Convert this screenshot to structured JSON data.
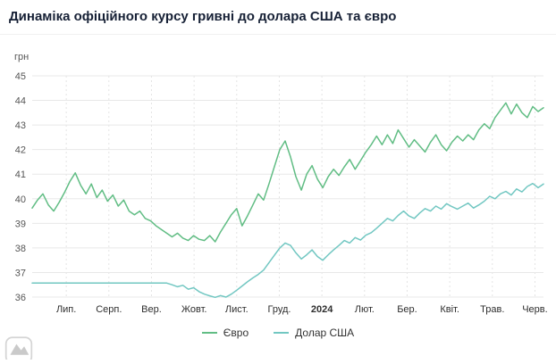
{
  "chart_data": {
    "type": "line",
    "title": "Динаміка офіційного курсу гривні до долара США та євро",
    "xlabel": "",
    "ylabel": "грн",
    "ylim": [
      36,
      45
    ],
    "yticks": [
      36,
      37,
      38,
      39,
      40,
      41,
      42,
      43,
      44,
      45
    ],
    "grid": true,
    "legend_position": "bottom",
    "categories": [
      "Лип.",
      "Серп.",
      "Вер.",
      "Жовт.",
      "Лист.",
      "Груд.",
      "2024",
      "Лют.",
      "Бер.",
      "Квіт.",
      "Трав.",
      "Черв."
    ],
    "bold_category": "2024",
    "series": [
      {
        "id": "euro",
        "name": "Євро",
        "color": "#61bd84",
        "values": [
          39.62,
          39.95,
          40.2,
          39.75,
          39.5,
          39.85,
          40.25,
          40.7,
          41.05,
          40.55,
          40.2,
          40.6,
          40.05,
          40.35,
          39.9,
          40.15,
          39.7,
          39.95,
          39.5,
          39.35,
          39.5,
          39.2,
          39.1,
          38.9,
          38.75,
          38.6,
          38.45,
          38.6,
          38.4,
          38.3,
          38.5,
          38.35,
          38.3,
          38.5,
          38.25,
          38.65,
          39.0,
          39.35,
          39.6,
          38.9,
          39.3,
          39.75,
          40.2,
          39.95,
          40.6,
          41.3,
          42.0,
          42.35,
          41.7,
          40.9,
          40.35,
          41.0,
          41.35,
          40.8,
          40.45,
          40.9,
          41.2,
          40.95,
          41.3,
          41.6,
          41.2,
          41.55,
          41.9,
          42.2,
          42.55,
          42.2,
          42.6,
          42.25,
          42.8,
          42.45,
          42.1,
          42.4,
          42.15,
          41.9,
          42.3,
          42.6,
          42.2,
          41.95,
          42.3,
          42.55,
          42.35,
          42.6,
          42.4,
          42.8,
          43.05,
          42.85,
          43.3,
          43.6,
          43.9,
          43.45,
          43.85,
          43.5,
          43.3,
          43.75,
          43.55,
          43.7
        ]
      },
      {
        "id": "dollar-usd",
        "name": "Долар США",
        "color": "#72c7c2",
        "values": [
          36.57,
          36.57,
          36.57,
          36.57,
          36.57,
          36.57,
          36.57,
          36.57,
          36.57,
          36.57,
          36.57,
          36.57,
          36.57,
          36.57,
          36.57,
          36.57,
          36.57,
          36.57,
          36.57,
          36.57,
          36.57,
          36.57,
          36.57,
          36.57,
          36.57,
          36.57,
          36.5,
          36.42,
          36.48,
          36.32,
          36.38,
          36.22,
          36.12,
          36.05,
          35.99,
          36.06,
          36.0,
          36.12,
          36.28,
          36.45,
          36.62,
          36.78,
          36.92,
          37.1,
          37.4,
          37.7,
          38.0,
          38.2,
          38.1,
          37.8,
          37.55,
          37.72,
          37.92,
          37.65,
          37.5,
          37.72,
          37.92,
          38.1,
          38.3,
          38.2,
          38.42,
          38.32,
          38.52,
          38.62,
          38.8,
          39.0,
          39.2,
          39.1,
          39.32,
          39.5,
          39.3,
          39.2,
          39.42,
          39.6,
          39.5,
          39.7,
          39.58,
          39.8,
          39.68,
          39.58,
          39.7,
          39.82,
          39.62,
          39.75,
          39.9,
          40.1,
          40.0,
          40.2,
          40.3,
          40.15,
          40.4,
          40.28,
          40.5,
          40.62,
          40.45,
          40.6
        ]
      }
    ]
  }
}
